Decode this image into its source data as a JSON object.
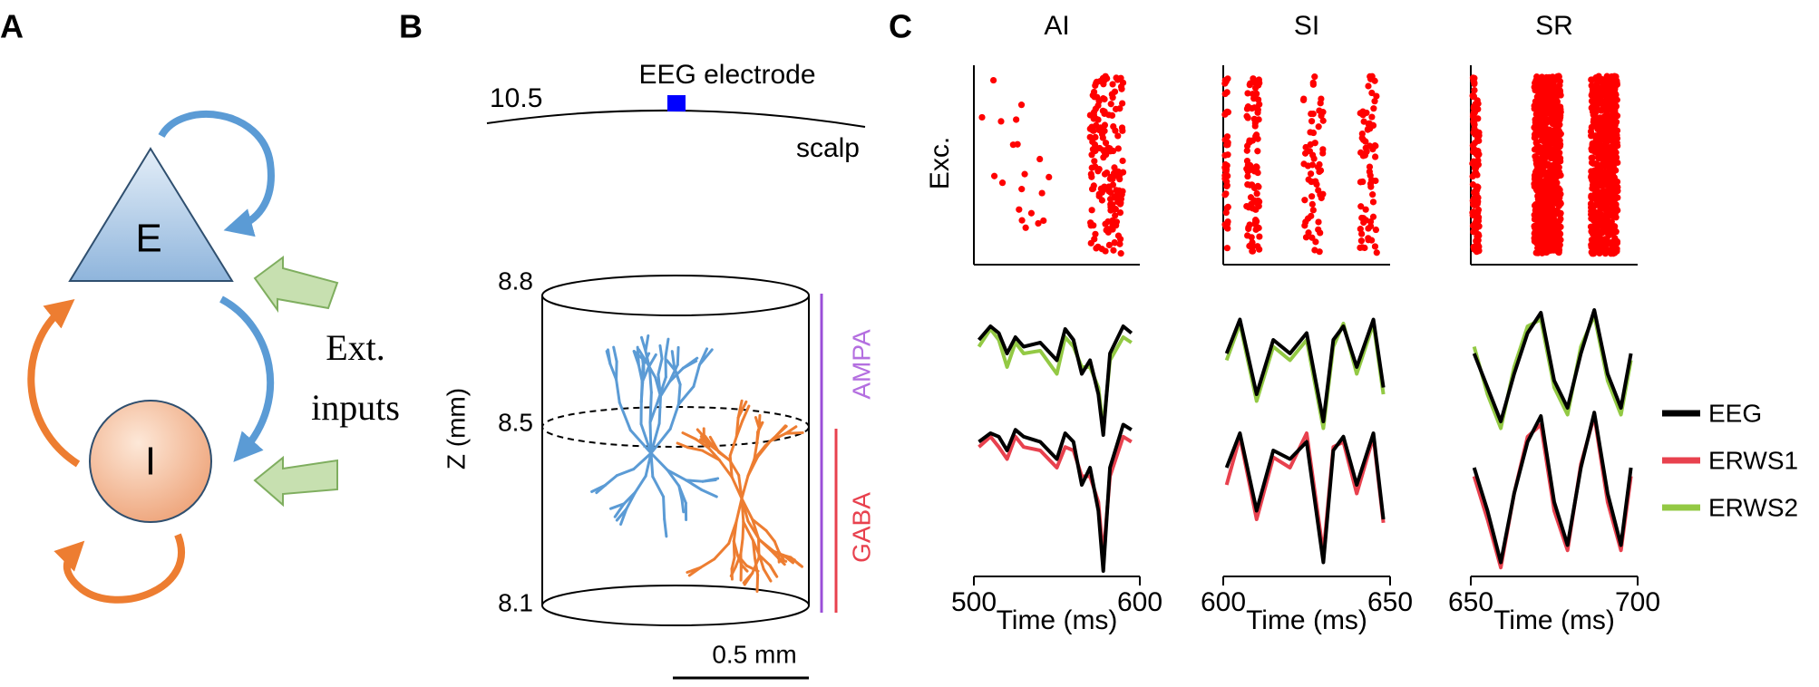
{
  "panel_a": {
    "label": "A",
    "nodes": [
      "E",
      "I"
    ],
    "inputs_label": [
      "Ext.",
      "inputs"
    ]
  },
  "panel_b": {
    "label": "B",
    "electrode_label": "EEG electrode",
    "scalp_depth": 10.5,
    "scalp_label": "scalp",
    "z_label": "Z (mm)",
    "z_ticks": [
      8.8,
      8.5,
      8.1
    ],
    "ampa_label": "AMPA",
    "gaba_label": "GABA",
    "scale_label": "0.5 mm"
  },
  "panel_c_label": "C",
  "legend": [
    {
      "name": "EEG",
      "color": "#000000"
    },
    {
      "name": "ERWS1",
      "color": "#e8414e"
    },
    {
      "name": "ERWS2",
      "color": "#93c944"
    }
  ],
  "chart_data": [
    {
      "type": "line",
      "title": "AI",
      "ylabel": "Exc.",
      "xlabel": "Time (ms)",
      "xlim": [
        500,
        600
      ],
      "xticks": [
        500,
        600
      ],
      "ylim": [
        0,
        1
      ],
      "spike_bands": [
        [
          503,
          548
        ],
        [
          570,
          590
        ]
      ],
      "spikes_per_band": [
        20,
        170
      ],
      "x": [
        503,
        510,
        515,
        520,
        525,
        530,
        540,
        550,
        555,
        560,
        565,
        570,
        575,
        578,
        582,
        590,
        595
      ],
      "rows": [
        {
          "series": [
            {
              "name": "ERWS2",
              "color": "#93c944",
              "values": [
                0.65,
                0.78,
                0.7,
                0.5,
                0.68,
                0.6,
                0.62,
                0.45,
                0.72,
                0.65,
                0.5,
                0.5,
                0.35,
                0.05,
                0.55,
                0.72,
                0.68
              ]
            },
            {
              "name": "EEG",
              "color": "#000000",
              "values": [
                0.7,
                0.8,
                0.75,
                0.6,
                0.72,
                0.65,
                0.68,
                0.55,
                0.78,
                0.7,
                0.45,
                0.55,
                0.3,
                0.0,
                0.6,
                0.8,
                0.75
              ]
            }
          ]
        },
        {
          "series": [
            {
              "name": "ERWS1",
              "color": "#e8414e",
              "values": [
                0.72,
                0.78,
                0.72,
                0.65,
                0.78,
                0.72,
                0.7,
                0.6,
                0.72,
                0.7,
                0.55,
                0.55,
                0.4,
                0.08,
                0.55,
                0.78,
                0.75
              ]
            },
            {
              "name": "EEG",
              "color": "#000000",
              "values": [
                0.75,
                0.8,
                0.78,
                0.7,
                0.82,
                0.78,
                0.75,
                0.65,
                0.8,
                0.75,
                0.5,
                0.6,
                0.35,
                0.0,
                0.6,
                0.85,
                0.82
              ]
            }
          ]
        }
      ]
    },
    {
      "type": "line",
      "title": "SI",
      "xlabel": "Time (ms)",
      "xlim": [
        600,
        650
      ],
      "xticks": [
        600,
        650
      ],
      "ylim": [
        0,
        1
      ],
      "spike_bands": [
        [
          600.5,
          601.5
        ],
        [
          607,
          611
        ],
        [
          624,
          630
        ],
        [
          641,
          646
        ]
      ],
      "spikes_per_band": [
        40,
        90,
        60,
        70
      ],
      "x": [
        601,
        605,
        610,
        615,
        620,
        625,
        630,
        633,
        636,
        640,
        645,
        648
      ],
      "rows": [
        {
          "series": [
            {
              "name": "ERWS2",
              "color": "#93c944",
              "values": [
                0.55,
                0.82,
                0.25,
                0.65,
                0.55,
                0.7,
                0.05,
                0.65,
                0.82,
                0.45,
                0.82,
                0.3
              ]
            },
            {
              "name": "EEG",
              "color": "#000000",
              "values": [
                0.6,
                0.85,
                0.3,
                0.7,
                0.6,
                0.75,
                0.1,
                0.7,
                0.8,
                0.5,
                0.85,
                0.35
              ]
            }
          ]
        },
        {
          "series": [
            {
              "name": "ERWS1",
              "color": "#e8414e",
              "values": [
                0.5,
                0.78,
                0.3,
                0.66,
                0.6,
                0.8,
                0.1,
                0.72,
                0.75,
                0.45,
                0.78,
                0.28
              ]
            },
            {
              "name": "EEG",
              "color": "#000000",
              "values": [
                0.6,
                0.8,
                0.35,
                0.7,
                0.65,
                0.75,
                0.05,
                0.7,
                0.78,
                0.5,
                0.8,
                0.3
              ]
            }
          ]
        }
      ]
    },
    {
      "type": "line",
      "title": "SR",
      "xlabel": "Time (ms)",
      "xlim": [
        650,
        700
      ],
      "xticks": [
        650,
        700
      ],
      "ylim": [
        0,
        1
      ],
      "spike_bands": [
        [
          650.5,
          652.5
        ],
        [
          669,
          677
        ],
        [
          686,
          694
        ]
      ],
      "spikes_per_band": [
        120,
        700,
        700
      ],
      "x": [
        651,
        655,
        659,
        663,
        667,
        671,
        675,
        679,
        683,
        687,
        691,
        695,
        698
      ],
      "rows": [
        {
          "series": [
            {
              "name": "ERWS2",
              "color": "#93c944",
              "values": [
                0.65,
                0.3,
                0.05,
                0.5,
                0.8,
                0.85,
                0.35,
                0.15,
                0.65,
                0.88,
                0.4,
                0.15,
                0.55
              ]
            },
            {
              "name": "EEG",
              "color": "#000000",
              "values": [
                0.6,
                0.35,
                0.1,
                0.45,
                0.75,
                0.9,
                0.4,
                0.2,
                0.6,
                0.92,
                0.45,
                0.2,
                0.6
              ]
            }
          ]
        },
        {
          "series": [
            {
              "name": "ERWS1",
              "color": "#e8414e",
              "values": [
                0.55,
                0.3,
                0.02,
                0.45,
                0.78,
                0.85,
                0.35,
                0.12,
                0.62,
                0.9,
                0.4,
                0.12,
                0.55
              ]
            },
            {
              "name": "EEG",
              "color": "#000000",
              "values": [
                0.6,
                0.35,
                0.05,
                0.45,
                0.75,
                0.9,
                0.4,
                0.15,
                0.6,
                0.92,
                0.45,
                0.15,
                0.6
              ]
            }
          ]
        }
      ]
    }
  ]
}
